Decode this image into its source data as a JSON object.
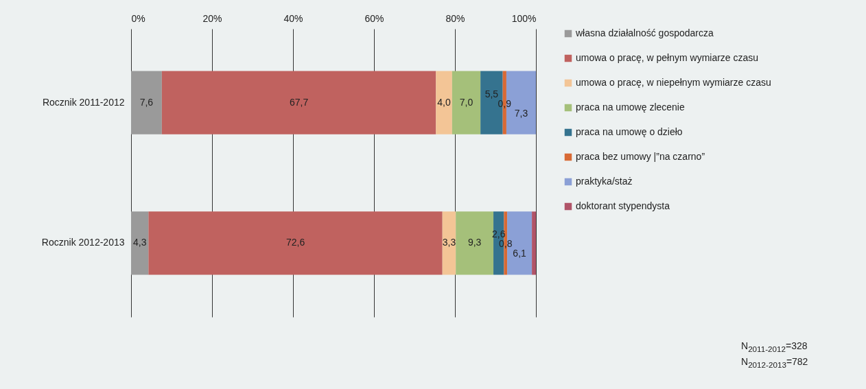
{
  "chart_data": {
    "type": "bar",
    "orientation": "horizontal",
    "stacked": true,
    "categories": [
      "Rocznik 2011-2012",
      "Rocznik 2012-2013"
    ],
    "series": [
      {
        "name": "własna działalność gospodarcza",
        "color": "#9a9a9a",
        "values": [
          7.6,
          4.3
        ],
        "value_labels": [
          "7,6",
          "4,3"
        ]
      },
      {
        "name": "umowa o pracę, w pełnym wymiarze czasu",
        "color": "#c0625f",
        "values": [
          67.7,
          72.6
        ],
        "value_labels": [
          "67,7",
          "72,6"
        ]
      },
      {
        "name": "umowa o pracę, w niepełnym wymiarze czasu",
        "color": "#f3c596",
        "values": [
          4.0,
          3.3
        ],
        "value_labels": [
          "4,0",
          "3,3"
        ]
      },
      {
        "name": "praca na umowę zlecenie",
        "color": "#a5c07a",
        "values": [
          7.0,
          9.3
        ],
        "value_labels": [
          "7,0",
          "9,3"
        ]
      },
      {
        "name": "praca na umowę o dzieło",
        "color": "#35738f",
        "values": [
          5.5,
          2.6
        ],
        "value_labels": [
          "5,5",
          "2,6"
        ]
      },
      {
        "name": "praca bez umowy |”na czarno”",
        "color": "#d86a35",
        "values": [
          0.9,
          0.8
        ],
        "value_labels": [
          "0,9",
          "0,8"
        ]
      },
      {
        "name": "praktyka/staż",
        "color": "#8ba0d6",
        "values": [
          7.3,
          6.1
        ],
        "value_labels": [
          "7,3",
          "6,1"
        ]
      },
      {
        "name": "doktorant stypendysta",
        "color": "#b05468",
        "values": [
          null,
          1.0
        ],
        "value_labels": [
          null,
          null
        ]
      }
    ],
    "xlim": [
      0,
      100
    ],
    "xticks": [
      {
        "value": 0,
        "label": "0%"
      },
      {
        "value": 20,
        "label": "20%"
      },
      {
        "value": 40,
        "label": "40%"
      },
      {
        "value": 60,
        "label": "60%"
      },
      {
        "value": 80,
        "label": "80%"
      },
      {
        "value": 100,
        "label": "100%"
      }
    ],
    "grid": "x",
    "legend": "right",
    "annotations": [
      "N$_{2011-2012}$=328",
      "N$_{2012-2013}$=782"
    ]
  }
}
